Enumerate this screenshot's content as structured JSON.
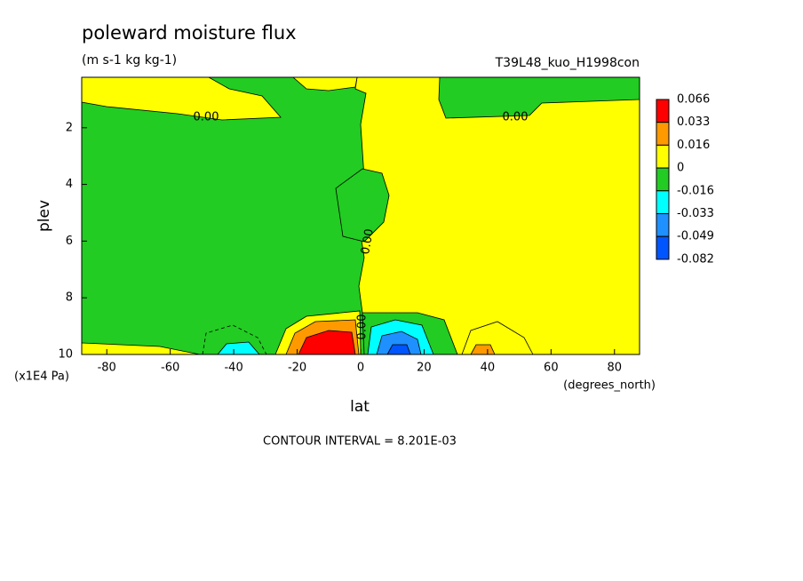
{
  "chart_data": {
    "type": "contour",
    "title": "poleward moisture flux",
    "subtitle": "(m s-1 kg kg-1)",
    "run_label": "T39L48_kuo_H1998con",
    "x_label": "lat",
    "x_unit": "(degrees_north)",
    "y_label": "plev",
    "y_unit": "(x1E4 Pa)",
    "xlim": [
      -87.9,
      87.9
    ],
    "xticks": [
      -80,
      -60,
      -40,
      -20,
      0,
      20,
      40,
      60,
      80
    ],
    "ylim": [
      10,
      0.22
    ],
    "yticks": [
      2,
      4,
      6,
      8,
      10
    ],
    "colorbar": {
      "levels": [
        0.066,
        0.033,
        0.016,
        0,
        -0.016,
        -0.033,
        -0.049,
        -0.082
      ],
      "colors": [
        "#ff0000",
        "#ff9900",
        "#ffff00",
        "#22cc22",
        "#00ffff",
        "#1e90ff",
        "#0055ff"
      ]
    },
    "contour_labels": [
      "0.00",
      "0.00",
      "0.00",
      "0.00"
    ],
    "footer": "CONTOUR INTERVAL = 8.201E-03"
  }
}
